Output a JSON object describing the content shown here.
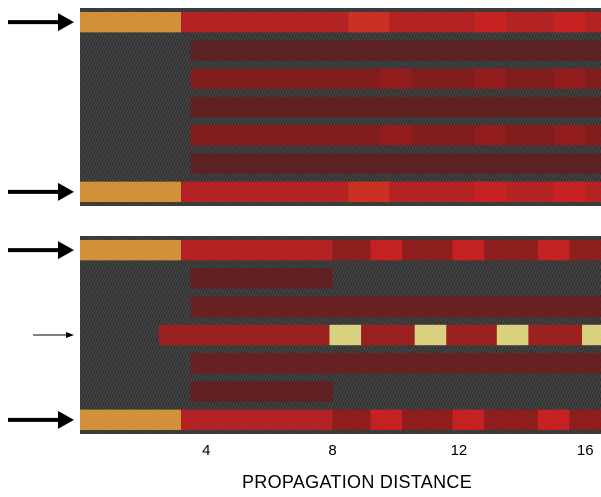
{
  "chart_data": {
    "type": "heatmap",
    "xlabel": "PROPAGATION DISTANCE",
    "ylabel": "",
    "xlim": [
      0,
      16.5
    ],
    "x_ticks": [
      4,
      8,
      12,
      16
    ],
    "colors": {
      "background": "#3a3a3a",
      "low": "#7a1010",
      "mid": "#e02020",
      "high": "#ff9020",
      "peak": "#ffff80"
    },
    "panels": [
      {
        "waveguides": 7,
        "input_channels": [
          1,
          7
        ],
        "rows": [
          {
            "channel": 1,
            "segments": [
              {
                "x0": 0,
                "x1": 3.2,
                "level": 0.85
              },
              {
                "x0": 3.2,
                "x1": 16.5,
                "level": 0.45
              },
              {
                "x0": 8.5,
                "x1": 9.8,
                "level": 0.55
              },
              {
                "x0": 12.5,
                "x1": 13.5,
                "level": 0.5
              },
              {
                "x0": 15,
                "x1": 16,
                "level": 0.5
              }
            ]
          },
          {
            "channel": 2,
            "segments": [
              {
                "x0": 3.5,
                "x1": 16.5,
                "level": 0.1
              }
            ]
          },
          {
            "channel": 3,
            "segments": [
              {
                "x0": 3.5,
                "x1": 16.5,
                "level": 0.25
              },
              {
                "x0": 9.5,
                "x1": 10.5,
                "level": 0.3
              },
              {
                "x0": 12.5,
                "x1": 13.5,
                "level": 0.3
              },
              {
                "x0": 15,
                "x1": 16,
                "level": 0.3
              }
            ]
          },
          {
            "channel": 4,
            "segments": [
              {
                "x0": 3.5,
                "x1": 16.5,
                "level": 0.12
              }
            ]
          },
          {
            "channel": 5,
            "segments": [
              {
                "x0": 3.5,
                "x1": 16.5,
                "level": 0.25
              },
              {
                "x0": 9.5,
                "x1": 10.5,
                "level": 0.3
              },
              {
                "x0": 12.5,
                "x1": 13.5,
                "level": 0.3
              },
              {
                "x0": 15,
                "x1": 16,
                "level": 0.3
              }
            ]
          },
          {
            "channel": 6,
            "segments": [
              {
                "x0": 3.5,
                "x1": 16.5,
                "level": 0.1
              }
            ]
          },
          {
            "channel": 7,
            "segments": [
              {
                "x0": 0,
                "x1": 3.2,
                "level": 0.85
              },
              {
                "x0": 3.2,
                "x1": 16.5,
                "level": 0.45
              },
              {
                "x0": 8.5,
                "x1": 9.8,
                "level": 0.55
              },
              {
                "x0": 12.5,
                "x1": 13.5,
                "level": 0.5
              },
              {
                "x0": 15,
                "x1": 16,
                "level": 0.5
              }
            ]
          }
        ]
      },
      {
        "waveguides": 7,
        "input_channels": [
          1,
          4,
          7
        ],
        "rows": [
          {
            "channel": 1,
            "segments": [
              {
                "x0": 0,
                "x1": 3.2,
                "level": 0.85
              },
              {
                "x0": 3.2,
                "x1": 8,
                "level": 0.45
              },
              {
                "x0": 8,
                "x1": 16.5,
                "level": 0.3
              },
              {
                "x0": 9.2,
                "x1": 10.2,
                "level": 0.5
              },
              {
                "x0": 11.8,
                "x1": 12.8,
                "level": 0.5
              },
              {
                "x0": 14.5,
                "x1": 15.5,
                "level": 0.5
              }
            ]
          },
          {
            "channel": 2,
            "segments": [
              {
                "x0": 3.5,
                "x1": 8,
                "level": 0.12
              }
            ]
          },
          {
            "channel": 3,
            "segments": [
              {
                "x0": 3.5,
                "x1": 16.5,
                "level": 0.15
              }
            ]
          },
          {
            "channel": 4,
            "segments": [
              {
                "x0": 2.5,
                "x1": 16.5,
                "level": 0.35
              },
              {
                "x0": 7.9,
                "x1": 8.9,
                "level": 1.0
              },
              {
                "x0": 10.6,
                "x1": 11.6,
                "level": 1.0
              },
              {
                "x0": 13.2,
                "x1": 14.2,
                "level": 1.0
              },
              {
                "x0": 15.9,
                "x1": 16.5,
                "level": 1.0
              }
            ]
          },
          {
            "channel": 5,
            "segments": [
              {
                "x0": 3.5,
                "x1": 16.5,
                "level": 0.15
              }
            ]
          },
          {
            "channel": 6,
            "segments": [
              {
                "x0": 3.5,
                "x1": 8,
                "level": 0.12
              }
            ]
          },
          {
            "channel": 7,
            "segments": [
              {
                "x0": 0,
                "x1": 3.2,
                "level": 0.85
              },
              {
                "x0": 3.2,
                "x1": 8,
                "level": 0.45
              },
              {
                "x0": 8,
                "x1": 16.5,
                "level": 0.3
              },
              {
                "x0": 9.2,
                "x1": 10.2,
                "level": 0.5
              },
              {
                "x0": 11.8,
                "x1": 12.8,
                "level": 0.5
              },
              {
                "x0": 14.5,
                "x1": 15.5,
                "level": 0.5
              }
            ]
          }
        ]
      }
    ]
  }
}
